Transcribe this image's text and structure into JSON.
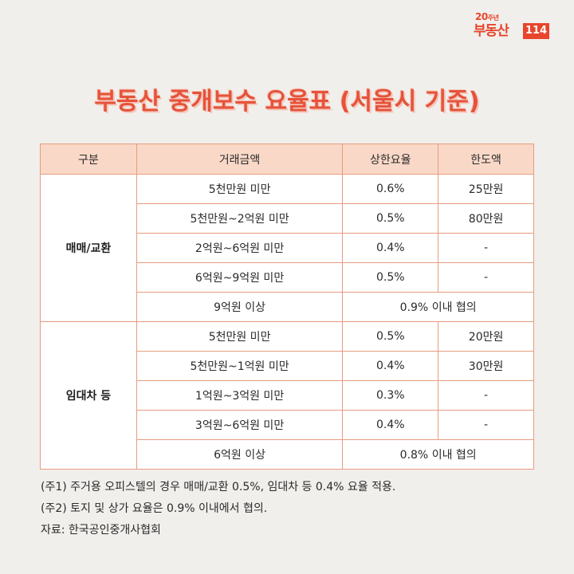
{
  "logo": {
    "anniversary": "20",
    "anniversary_suffix": "주년",
    "brand": "부동산",
    "number": "114"
  },
  "title": "부동산 중개보수 요율표 (서울시 기준)",
  "table": {
    "headers": [
      "구분",
      "거래금액",
      "상한요율",
      "한도액"
    ],
    "groups": [
      {
        "label": "매매/교환",
        "rows": [
          {
            "amount": "5천만원 미만",
            "rate": "0.6%",
            "limit": "25만원"
          },
          {
            "amount": "5천만원~2억원 미만",
            "rate": "0.5%",
            "limit": "80만원"
          },
          {
            "amount": "2억원~6억원 미만",
            "rate": "0.4%",
            "limit": "-"
          },
          {
            "amount": "6억원~9억원 미만",
            "rate": "0.5%",
            "limit": "-"
          },
          {
            "amount": "9억원 이상",
            "merged": "0.9% 이내 협의"
          }
        ]
      },
      {
        "label": "임대차 등",
        "rows": [
          {
            "amount": "5천만원 미만",
            "rate": "0.5%",
            "limit": "20만원"
          },
          {
            "amount": "5천만원~1억원 미만",
            "rate": "0.4%",
            "limit": "30만원"
          },
          {
            "amount": "1억원~3억원 미만",
            "rate": "0.3%",
            "limit": "-"
          },
          {
            "amount": "3억원~6억원 미만",
            "rate": "0.4%",
            "limit": "-"
          },
          {
            "amount": "6억원 이상",
            "merged": "0.8% 이내 협의"
          }
        ]
      }
    ]
  },
  "notes": [
    "(주1) 주거용 오피스텔의 경우 매매/교환 0.5%, 임대차 등 0.4% 요율 적용.",
    "(주2) 토지 및 상가 요율은 0.9% 이내에서 협의.",
    "자료: 한국공인중개사협회"
  ]
}
